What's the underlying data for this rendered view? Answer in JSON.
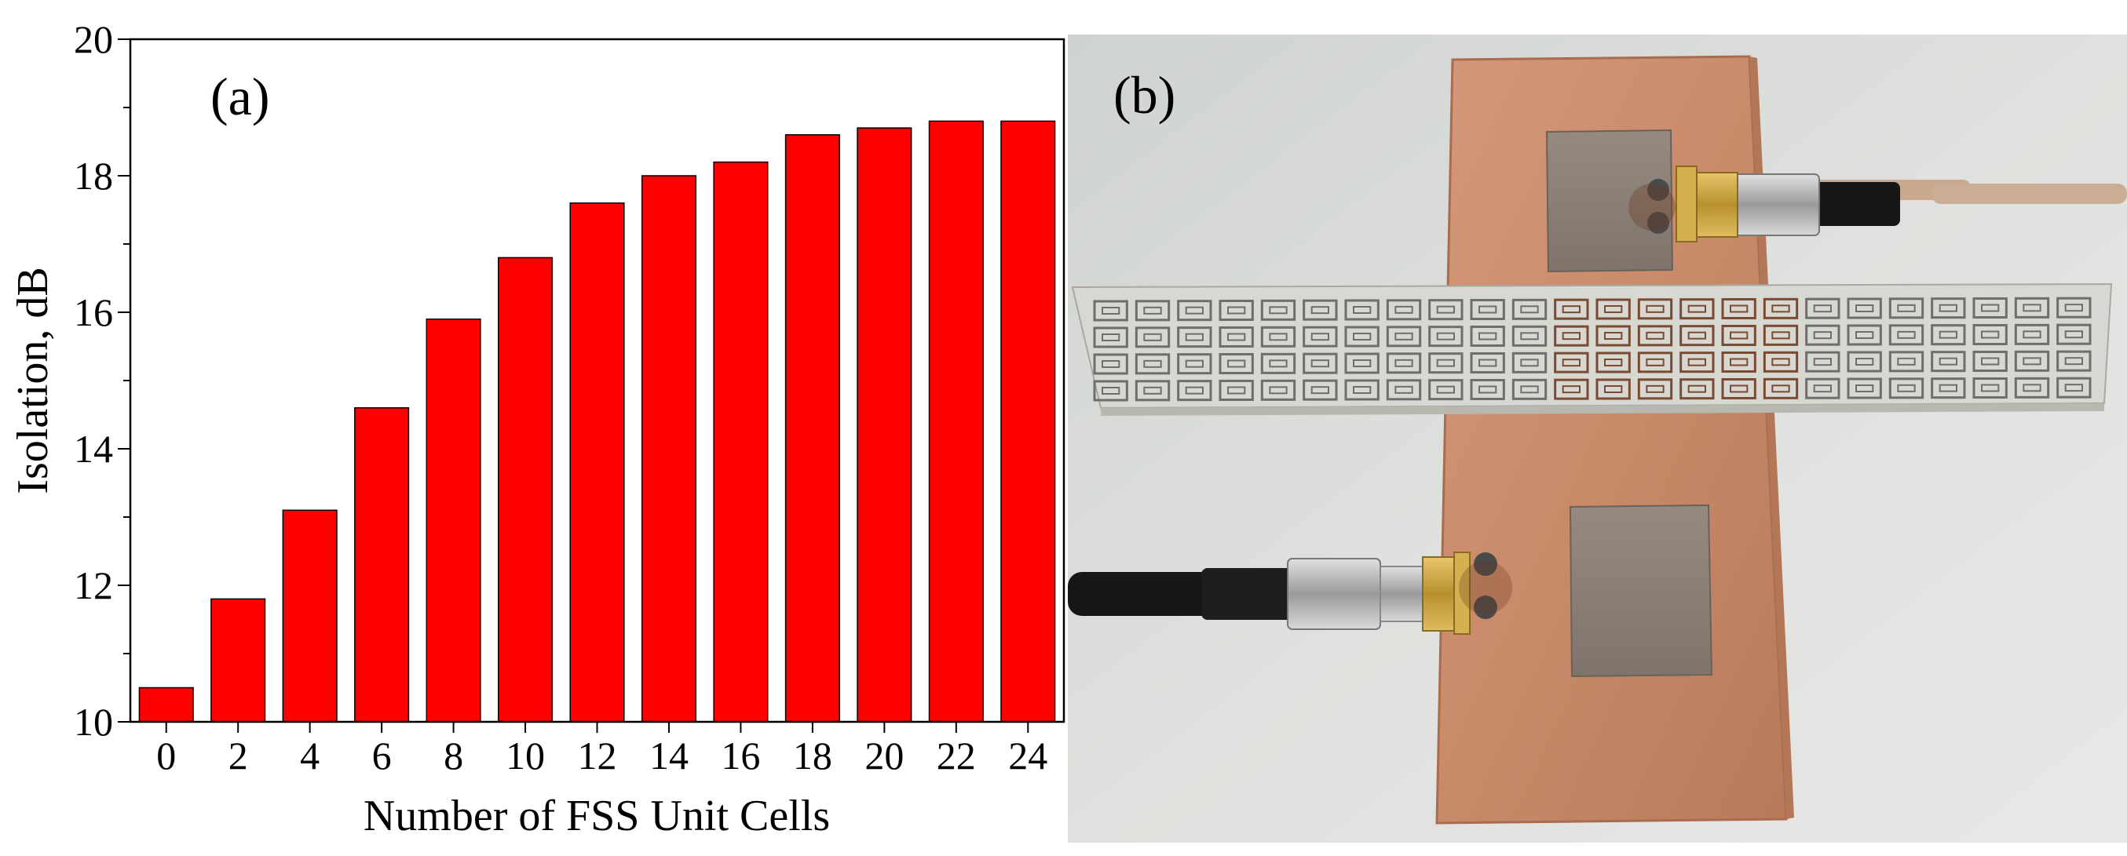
{
  "chart_data": {
    "panel_label": "(a)",
    "type": "bar",
    "categories": [
      "0",
      "2",
      "4",
      "6",
      "8",
      "10",
      "12",
      "14",
      "16",
      "18",
      "20",
      "22",
      "24"
    ],
    "values": [
      10.5,
      11.8,
      13.1,
      14.6,
      15.9,
      16.8,
      17.6,
      18.0,
      18.2,
      18.6,
      18.7,
      18.8,
      18.8
    ],
    "xlabel": "Number of FSS Unit Cells",
    "ylabel": "Isolation, dB",
    "ylim": [
      10,
      20
    ],
    "yticks": [
      "10",
      "12",
      "14",
      "16",
      "18",
      "20"
    ],
    "bar_color": "#ff0000",
    "grid": false
  },
  "photo": {
    "panel_label": "(b)",
    "colors": {
      "background": "#d9dcd8",
      "copper": "#c98a68",
      "metal_block": "#8d8178",
      "fss_substrate": "#d8d8d2",
      "cable": "#161616"
    }
  }
}
